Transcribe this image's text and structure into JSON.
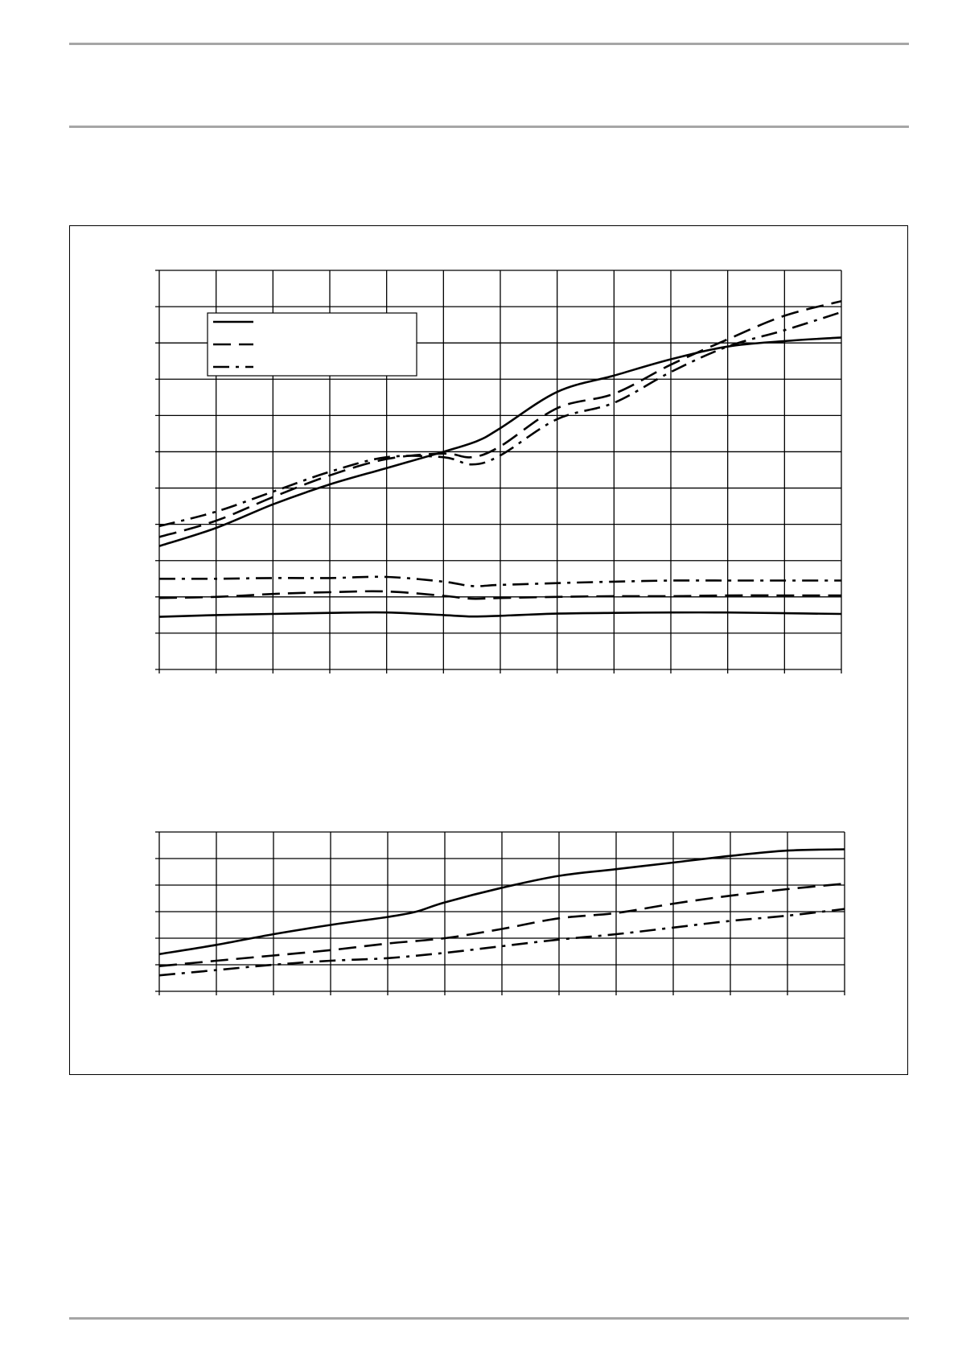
{
  "page": {
    "background": "#ffffff",
    "rule_color": "#a6a6a6",
    "line_color": "#000000"
  },
  "chart_data": [
    {
      "type": "line",
      "title": "",
      "xlabel": "",
      "ylabel": "",
      "xlim": [
        0,
        12
      ],
      "ylim": [
        0,
        11
      ],
      "x_ticks": [
        0,
        1,
        2,
        3,
        4,
        5,
        6,
        7,
        8,
        9,
        10,
        11,
        12
      ],
      "y_ticks": [
        0,
        1,
        2,
        3,
        4,
        5,
        6,
        7,
        8,
        9,
        10,
        11
      ],
      "tick_labels_visible": false,
      "grid": true,
      "legend": {
        "placement": "top-left",
        "entries": [
          {
            "style": "solid",
            "label": ""
          },
          {
            "style": "dashed",
            "label": ""
          },
          {
            "style": "dash-dot",
            "label": ""
          }
        ]
      },
      "series": [
        {
          "style": "solid",
          "x": [
            0,
            1,
            2,
            3,
            4,
            5,
            5.6,
            6,
            7,
            8,
            9,
            10,
            11,
            12
          ],
          "y": [
            3.4,
            3.9,
            4.55,
            5.1,
            5.55,
            6.0,
            6.3,
            6.65,
            7.65,
            8.1,
            8.55,
            8.9,
            9.05,
            9.15
          ]
        },
        {
          "style": "dashed",
          "x": [
            0,
            1,
            2,
            3,
            4,
            5,
            5.5,
            6,
            7,
            8,
            9,
            10,
            11,
            12
          ],
          "y": [
            3.65,
            4.1,
            4.75,
            5.35,
            5.8,
            5.95,
            5.85,
            6.15,
            7.2,
            7.6,
            8.4,
            9.1,
            9.75,
            10.15
          ]
        },
        {
          "style": "dash-dot",
          "x": [
            0,
            1,
            2,
            3,
            4,
            5,
            5.5,
            6,
            7,
            8,
            9,
            10,
            11,
            12
          ],
          "y": [
            3.95,
            4.35,
            4.9,
            5.45,
            5.85,
            5.85,
            5.65,
            5.9,
            6.9,
            7.35,
            8.2,
            8.9,
            9.35,
            9.85
          ]
        },
        {
          "style": "dash-dot",
          "x": [
            0,
            1,
            2,
            3,
            4,
            5,
            5.5,
            6,
            7,
            8,
            9,
            10,
            11,
            12
          ],
          "y": [
            2.5,
            2.5,
            2.52,
            2.52,
            2.55,
            2.42,
            2.3,
            2.33,
            2.38,
            2.42,
            2.45,
            2.45,
            2.45,
            2.45
          ]
        },
        {
          "style": "dashed",
          "x": [
            0,
            1,
            2,
            3,
            4,
            5,
            5.5,
            6,
            7,
            8,
            9,
            10,
            11,
            12
          ],
          "y": [
            1.97,
            2.0,
            2.08,
            2.13,
            2.15,
            2.03,
            1.95,
            1.97,
            2.0,
            2.02,
            2.02,
            2.04,
            2.04,
            2.04
          ]
        },
        {
          "style": "solid",
          "x": [
            0,
            1,
            2,
            3,
            4,
            5,
            5.5,
            6,
            7,
            8,
            9,
            10,
            11,
            12
          ],
          "y": [
            1.45,
            1.5,
            1.53,
            1.56,
            1.57,
            1.5,
            1.46,
            1.48,
            1.54,
            1.56,
            1.57,
            1.57,
            1.55,
            1.53
          ]
        }
      ]
    },
    {
      "type": "line",
      "title": "",
      "xlabel": "",
      "ylabel": "",
      "xlim": [
        0,
        12
      ],
      "ylim": [
        0,
        6
      ],
      "x_ticks": [
        0,
        1,
        2,
        3,
        4,
        5,
        6,
        7,
        8,
        9,
        10,
        11,
        12
      ],
      "y_ticks": [
        0,
        1,
        2,
        3,
        4,
        5,
        6
      ],
      "tick_labels_visible": false,
      "grid": true,
      "series": [
        {
          "style": "solid",
          "x": [
            0,
            1,
            2,
            3,
            4,
            4.5,
            5,
            6,
            7,
            8,
            9,
            10,
            11,
            12
          ],
          "y": [
            1.4,
            1.75,
            2.15,
            2.5,
            2.8,
            3.0,
            3.35,
            3.9,
            4.35,
            4.6,
            4.85,
            5.1,
            5.3,
            5.35
          ]
        },
        {
          "style": "dashed",
          "x": [
            0,
            1,
            2,
            3,
            4,
            5,
            6,
            7,
            8,
            9,
            10,
            11,
            12
          ],
          "y": [
            0.95,
            1.15,
            1.35,
            1.55,
            1.8,
            2.0,
            2.35,
            2.75,
            2.95,
            3.3,
            3.6,
            3.85,
            4.05
          ]
        },
        {
          "style": "dash-dot",
          "x": [
            0,
            1,
            2,
            3,
            4,
            5,
            6,
            7,
            8,
            9,
            10,
            11,
            12
          ],
          "y": [
            0.6,
            0.8,
            1.0,
            1.15,
            1.25,
            1.45,
            1.7,
            1.95,
            2.15,
            2.4,
            2.65,
            2.85,
            3.1
          ]
        }
      ]
    }
  ]
}
